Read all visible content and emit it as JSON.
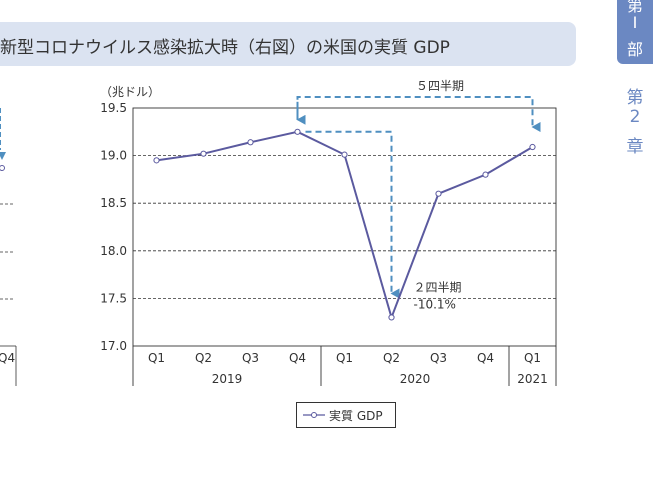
{
  "header": {
    "title": "新型コロナウイルス感染拡大時（右図）の米国の実質 GDP"
  },
  "side_tab": {
    "part_chars": [
      "第",
      "I",
      "部"
    ],
    "chapter_chars": [
      "第",
      "2",
      "章"
    ]
  },
  "left_chart_fragment": {
    "last_label": "Q4"
  },
  "chart_data": {
    "type": "line",
    "ylabel": "（兆ドル）",
    "ylim": [
      17.0,
      19.5
    ],
    "yticks": [
      "19.5",
      "19.0",
      "18.5",
      "18.0",
      "17.5",
      "17.0"
    ],
    "categories": [
      "Q1",
      "Q2",
      "Q3",
      "Q4",
      "Q1",
      "Q2",
      "Q3",
      "Q4",
      "Q1"
    ],
    "year_groups": [
      {
        "label": "2019",
        "span": 4
      },
      {
        "label": "2020",
        "span": 4
      },
      {
        "label": "2021",
        "span": 1
      }
    ],
    "series": [
      {
        "name": "実質 GDP",
        "values": [
          18.95,
          19.02,
          19.14,
          19.25,
          19.01,
          17.3,
          18.6,
          18.8,
          19.09
        ]
      }
    ],
    "grid": true,
    "legend_position": "bottom-center",
    "annotations": {
      "span_label": "５四半期",
      "drop_label": "２四半期",
      "drop_pct": "-10.1%"
    },
    "colors": {
      "line": "#5b5a9f",
      "arrow": "#4f8fc0"
    }
  }
}
